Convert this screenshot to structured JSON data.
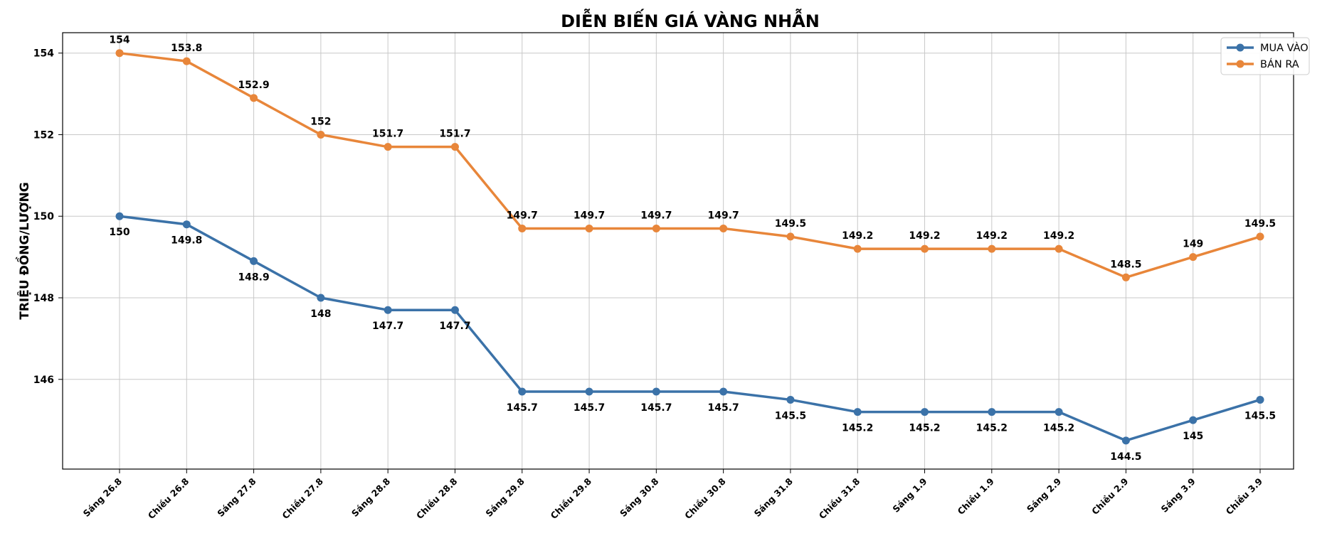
{
  "chart_data": {
    "type": "line",
    "title": "DIỄN BIẾN GIÁ VÀNG NHẪN",
    "xlabel": "",
    "ylabel": "TRIỆU ĐỒNG/LƯỢNG",
    "categories": [
      "Sáng 26.8",
      "Chiều 26.8",
      "Sáng 27.8",
      "Chiều 27.8",
      "Sáng 28.8",
      "Chiều 28.8",
      "Sáng 29.8",
      "Chiều 29.8",
      "Sáng 30.8",
      "Chiều 30.8",
      "Sáng 31.8",
      "Chiều 31.8",
      "Sáng 1.9",
      "Chiều 1.9",
      "Sáng 2.9",
      "Chiều 2.9",
      "Sáng 3.9",
      "Chiều 3.9"
    ],
    "series": [
      {
        "name": "MUA VÀO",
        "color": "#3b72a8",
        "labels_position": "below",
        "values": [
          150,
          149.8,
          148.9,
          148,
          147.7,
          147.7,
          145.7,
          145.7,
          145.7,
          145.7,
          145.5,
          145.2,
          145.2,
          145.2,
          145.2,
          144.5,
          145,
          145.5
        ]
      },
      {
        "name": "BÁN RA",
        "color": "#e8863a",
        "labels_position": "above",
        "values": [
          154,
          153.8,
          152.9,
          152,
          151.7,
          151.7,
          149.7,
          149.7,
          149.7,
          149.7,
          149.5,
          149.2,
          149.2,
          149.2,
          149.2,
          148.5,
          149,
          149.5
        ]
      }
    ],
    "ylim": [
      143.8,
      154.5
    ],
    "yticks": [
      146,
      148,
      150,
      152,
      154
    ],
    "grid": true,
    "legend": "top-right"
  }
}
